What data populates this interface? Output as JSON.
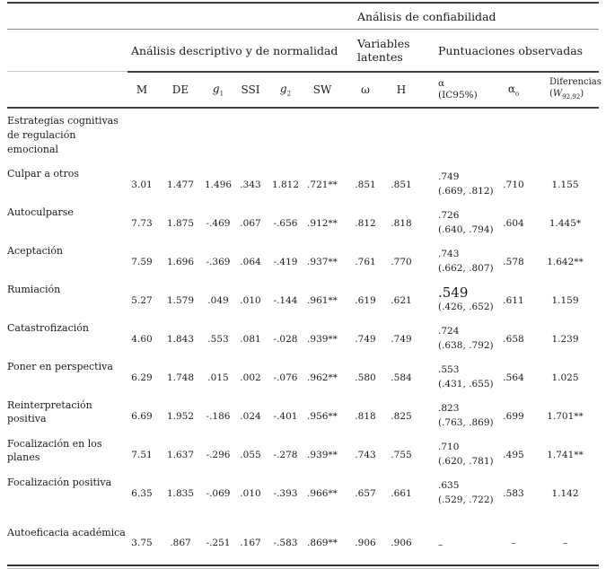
{
  "table": {
    "groups": {
      "confiabilidad": "Análisis de confiabilidad",
      "descriptivo": "Análisis descriptivo y de normalidad",
      "latentes": "Variables latentes",
      "puntuaciones": "Puntuaciones observadas"
    },
    "columns": {
      "m": "M",
      "de": "DE",
      "g": "g",
      "g1_sub": "1",
      "ssi": "SSI",
      "g2_sub": "2",
      "sw": "SW",
      "omega": "ω",
      "h": "H",
      "alpha": "α",
      "alpha_ci": "(IC95%)",
      "alpha_o_sub": "o",
      "dif": "Diferencias",
      "paren_open": "(",
      "dif_w": "W",
      "dif_w_sub": "92,92",
      "paren_close": ")"
    },
    "section_header": "Estrategias cognitivas de regulación emocional",
    "rows": [
      {
        "label": "Culpar a otros",
        "m": "3.01",
        "de": "1.477",
        "g1": "1.496",
        "ssi": ".343",
        "g2": "1.812",
        "sw": ".721**",
        "omega": ".851",
        "h": ".851",
        "alpha": ".749",
        "alpha_ci": "(.669, .812)",
        "alpha_o": ".710",
        "dif": "1.155"
      },
      {
        "label": "Autoculparse",
        "m": "7.73",
        "de": "1.875",
        "g1": "-.469",
        "ssi": ".067",
        "g2": "-.656",
        "sw": ".912**",
        "omega": ".812",
        "h": ".818",
        "alpha": ".726",
        "alpha_ci": "(.640, .794)",
        "alpha_o": ".604",
        "dif": "1.445*"
      },
      {
        "label": "Aceptación",
        "m": "7.59",
        "de": "1.696",
        "g1": "-.369",
        "ssi": ".064",
        "g2": "-.419",
        "sw": ".937**",
        "omega": ".761",
        "h": ".770",
        "alpha": ".743",
        "alpha_ci": "(.662, .807)",
        "alpha_o": ".578",
        "dif": "1.642**"
      },
      {
        "label": "Rumiación",
        "m": "5.27",
        "de": "1.579",
        "g1": ".049",
        "ssi": ".010",
        "g2": "-.144",
        "sw": ".961**",
        "omega": ".619",
        "h": ".621",
        "alpha": ".549",
        "alpha_big": true,
        "alpha_ci": "(.426, .652)",
        "alpha_o": ".611",
        "dif": "1.159"
      },
      {
        "label": "Catastrofización",
        "m": "4.60",
        "de": "1.843",
        "g1": ".553",
        "ssi": ".081",
        "g2": "-.028",
        "sw": ".939**",
        "omega": ".749",
        "h": ".749",
        "alpha": ".724",
        "alpha_ci": "(.638, .792)",
        "alpha_o": ".658",
        "dif": "1.239"
      },
      {
        "label": "Poner en perspectiva",
        "m": "6.29",
        "de": "1.748",
        "g1": ".015",
        "ssi": ".002",
        "g2": "-.076",
        "sw": ".962**",
        "omega": ".580",
        "h": ".584",
        "alpha": ".553",
        "alpha_ci": "(.431, .655)",
        "alpha_o": ".564",
        "dif": "1.025"
      },
      {
        "label": "Reinterpretación positiva",
        "m": "6.69",
        "de": "1.952",
        "g1": "-.186",
        "ssi": ".024",
        "g2": "-.401",
        "sw": ".956**",
        "omega": ".818",
        "h": ".825",
        "alpha": ".823",
        "alpha_ci": "(.763, .869)",
        "alpha_o": ".699",
        "dif": "1.701**"
      },
      {
        "label": "Focalización en los planes",
        "m": "7.51",
        "de": "1.637",
        "g1": "-.296",
        "ssi": ".055",
        "g2": "-.278",
        "sw": ".939**",
        "omega": ".743",
        "h": ".755",
        "alpha": ".710",
        "alpha_ci": "(.620, .781)",
        "alpha_o": ".495",
        "dif": "1.741**"
      },
      {
        "label": "Focalización positiva",
        "m": "6.35",
        "de": "1.835",
        "g1": "-.069",
        "ssi": ".010",
        "g2": "-.393",
        "sw": ".966**",
        "omega": ".657",
        "h": ".661",
        "alpha": ".635",
        "alpha_ci": "(.529, .722)",
        "alpha_o": ".583",
        "dif": "1.142"
      },
      {
        "label": "Autoeficacia académica",
        "tall": true,
        "m": "3.75",
        "de": ".867",
        "g1": "-.251",
        "ssi": ".167",
        "g2": "-.583",
        "sw": ".869**",
        "omega": ".906",
        "h": ".906",
        "alpha": "–",
        "alpha_ci": "",
        "alpha_o": "–",
        "dif": "–"
      }
    ]
  }
}
